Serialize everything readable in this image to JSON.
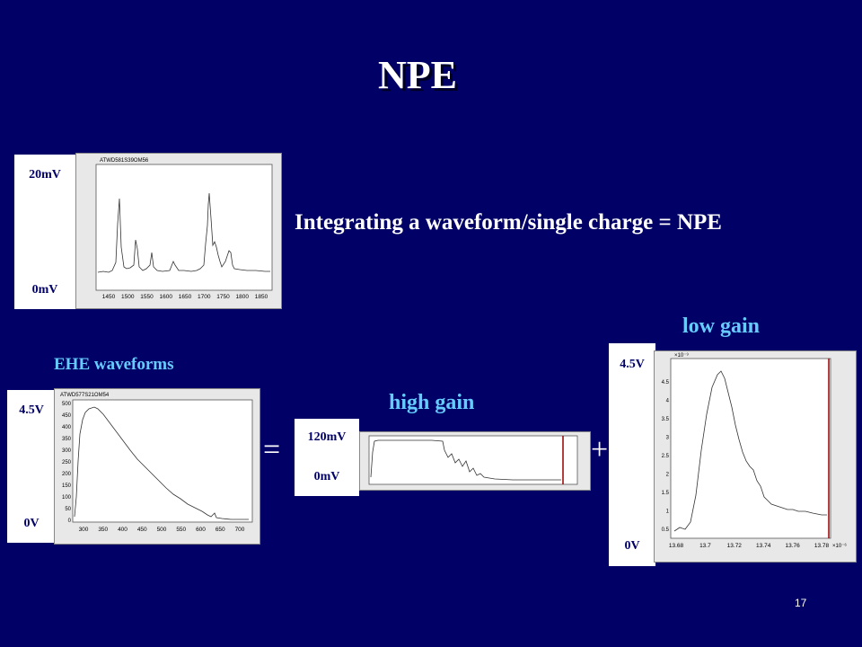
{
  "title": "NPE",
  "statement": "Integrating a waveform/single charge = NPE",
  "headings": {
    "ehe": "EHE waveforms",
    "high_gain": "high gain",
    "low_gain": "low gain"
  },
  "operators": {
    "equals": "=",
    "plus": "+"
  },
  "page_number": "17",
  "plot_top": {
    "header": "ATWD581S39OM56",
    "y_max_label": "20mV",
    "y_min_label": "0mV",
    "x_ticks": [
      "1450",
      "1500",
      "1550",
      "1600",
      "1650",
      "1700",
      "1750",
      "1800",
      "1850"
    ]
  },
  "plot_ehe": {
    "header": "ATWD577S21OM54",
    "y_max_label": "4.5V",
    "y_min_label": "0V",
    "x_ticks": [
      "300",
      "350",
      "400",
      "450",
      "500",
      "550",
      "600",
      "650",
      "700"
    ],
    "y_ticks": [
      "0",
      "50",
      "100",
      "150",
      "200",
      "250",
      "300",
      "350",
      "400",
      "450",
      "500"
    ]
  },
  "plot_high": {
    "y_max_label": "120mV",
    "y_min_label": "0mV"
  },
  "plot_low": {
    "y_max_label": "4.5V",
    "y_min_label": "0V",
    "x_ticks": [
      "13.68",
      "13.7",
      "13.72",
      "13.74",
      "13.76",
      "13.78"
    ],
    "y_ticks": [
      "0.5",
      "1",
      "1.5",
      "2",
      "2.5",
      "3",
      "3.5",
      "4",
      "4.5"
    ],
    "y_exponent": "×10⁻⁹",
    "x_exponent": "×10⁻⁶"
  }
}
